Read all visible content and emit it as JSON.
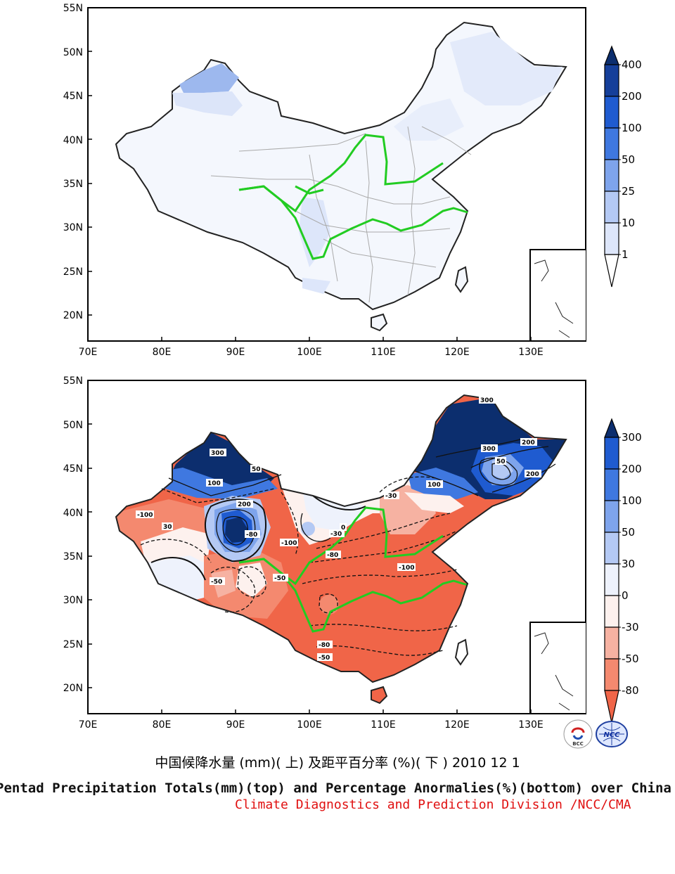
{
  "top_map": {
    "lat_labels": [
      "55N",
      "50N",
      "45N",
      "40N",
      "35N",
      "30N",
      "25N",
      "20N"
    ],
    "lon_labels": [
      "70E",
      "80E",
      "90E",
      "100E",
      "110E",
      "120E",
      "130E"
    ],
    "colorbar": {
      "labels": [
        "400",
        "200",
        "100",
        "50",
        "25",
        "10",
        "1"
      ],
      "colors": [
        "#0c2e6e",
        "#153f9a",
        "#1f5bd0",
        "#3f78e0",
        "#7ea4ec",
        "#b4c9f4",
        "#dde6fa",
        "#ffffff"
      ]
    }
  },
  "bottom_map": {
    "lat_labels": [
      "55N",
      "50N",
      "45N",
      "40N",
      "35N",
      "30N",
      "25N",
      "20N"
    ],
    "lon_labels": [
      "70E",
      "80E",
      "90E",
      "100E",
      "110E",
      "120E",
      "130E"
    ],
    "colorbar": {
      "labels": [
        "300",
        "200",
        "100",
        "50",
        "30",
        "0",
        "-30",
        "-50",
        "-80"
      ],
      "colors": [
        "#0c2e6e",
        "#1f5bd0",
        "#3f78e0",
        "#7ea4ec",
        "#b4c9f4",
        "#eef2fc",
        "#fdf1ee",
        "#f6b2a2",
        "#f4896f",
        "#f06548"
      ]
    },
    "contour_labels": [
      "300",
      "-100",
      "50",
      "100",
      "200",
      "30",
      "-30",
      "-50",
      "-80",
      "0",
      "-100",
      "-80",
      "-50",
      "-30",
      "300",
      "200",
      "100",
      "50",
      "300",
      "200",
      "-100",
      "-80",
      "-50"
    ]
  },
  "titles": {
    "chinese": "中国候降水量 (mm)( 上) 及距平百分率 (%)( 下 ) 2010 12 1",
    "english": "Pentad Precipitation Totals(mm)(top) and Percentage Anormalies(%)(bottom) over China",
    "credit": "Climate Diagnostics and Prediction Division /NCC/CMA"
  },
  "logos": {
    "left_icon": "bcc-logo-icon",
    "left_text": "BCC",
    "right_icon": "ncc-logo-icon",
    "right_text": "NCC"
  }
}
